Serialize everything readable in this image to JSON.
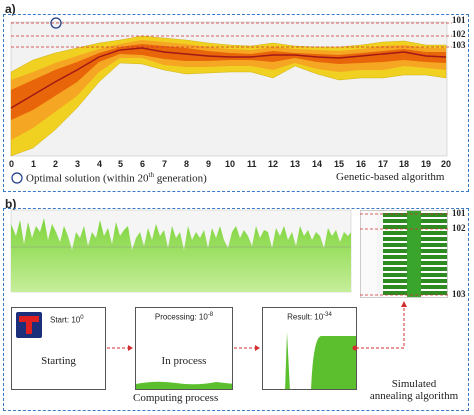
{
  "panel_a": {
    "label": "a)",
    "x_ticks": [
      "0",
      "1",
      "2",
      "3",
      "4",
      "5",
      "6",
      "7",
      "8",
      "9",
      "10",
      "11",
      "12",
      "13",
      "14",
      "15",
      "16",
      "17",
      "18",
      "19",
      "20"
    ],
    "levels": [
      "101",
      "102",
      "103"
    ],
    "legend_text": "Optimal solution (within 20",
    "legend_sup": "th",
    "legend_text_end": " generation)",
    "algorithm": "Genetic-based algorithm",
    "colors": {
      "outer": "#f0d020",
      "mid": "#f5a623",
      "inner": "#e8650a",
      "line": "#a01818",
      "level_line": "#d03030",
      "frame": "#3a78c8"
    }
  },
  "panel_b": {
    "label": "b)",
    "levels": [
      "101",
      "102",
      "103"
    ],
    "steps": [
      {
        "title": "Start: 10",
        "exp": "0",
        "caption": "Starting"
      },
      {
        "title": "Processing: 10",
        "exp": "-8",
        "caption": "In process"
      },
      {
        "title": "Result: 10",
        "exp": "-34",
        "caption": ""
      }
    ],
    "process_label": "Computing process",
    "algorithm_line1": "Simulated",
    "algorithm_line2": "annealing algorithm"
  }
}
